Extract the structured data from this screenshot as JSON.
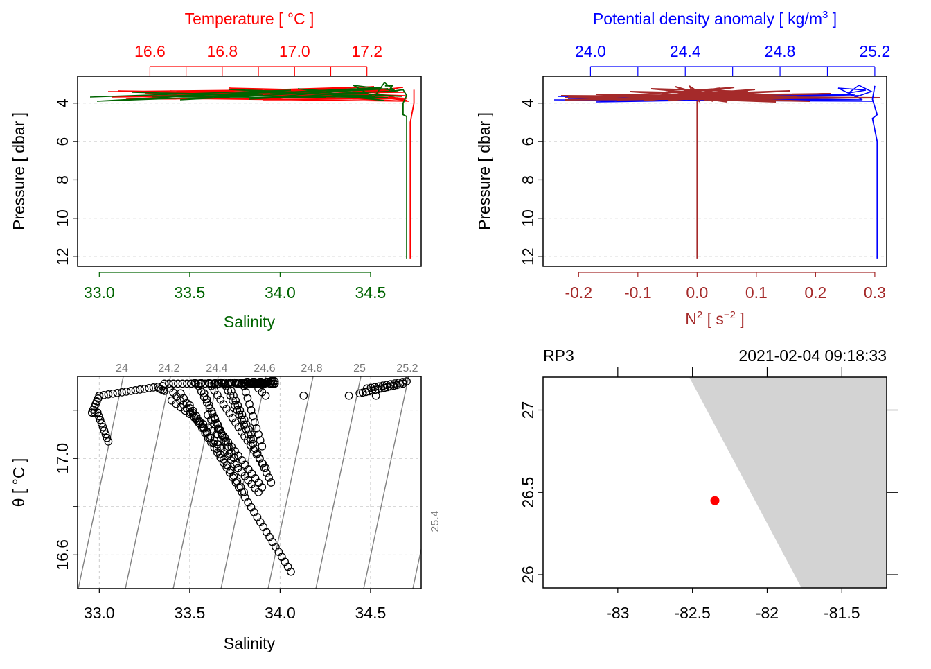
{
  "colors": {
    "salinity": "#006400",
    "temperature": "#ff0000",
    "density": "#0000ff",
    "n2": "#a52a2a",
    "land": "#d3d3d3",
    "station": "#ff0000",
    "grid": "#cccccc",
    "isopycnal": "#808080"
  },
  "chart_data": [
    {
      "type": "line",
      "name": "profile-salinity-temperature",
      "ylabel": "Pressure [ dbar ]",
      "ylim": [
        12.5,
        2.6
      ],
      "yticks": [
        "4",
        "6",
        "8",
        "10",
        "12"
      ],
      "grid": true,
      "x_bottom": {
        "label": "Salinity",
        "ticks": [
          "33.0",
          "33.5",
          "34.0",
          "34.5"
        ],
        "range": [
          32.88,
          34.78
        ]
      },
      "x_top": {
        "label": "Temperature [ °C ]",
        "ticks": [
          "16.6",
          "16.8",
          "17.0",
          "17.2"
        ],
        "range": [
          16.4,
          17.35
        ]
      },
      "series": [
        {
          "name": "Salinity",
          "axis": "bottom",
          "x": [
            34.58,
            34.62,
            34.6,
            34.68,
            34.7,
            34.68,
            34.68,
            34.7,
            34.7,
            34.7,
            34.7,
            34.7,
            34.7
          ],
          "y": [
            3.1,
            3.1,
            3.4,
            3.3,
            3.6,
            4.0,
            4.6,
            4.7,
            6.0,
            8.0,
            10.0,
            11.5,
            12.1
          ]
        },
        {
          "name": "Temperature",
          "axis": "top",
          "x": [
            17.33,
            17.33,
            17.32,
            17.32,
            17.32,
            17.32,
            17.32,
            17.32
          ],
          "y": [
            3.3,
            4.0,
            5.0,
            6.5,
            8.0,
            10.0,
            11.5,
            12.1
          ]
        }
      ]
    },
    {
      "type": "line",
      "name": "profile-density-n2",
      "ylabel": "Pressure [ dbar ]",
      "ylim": [
        12.5,
        2.6
      ],
      "yticks": [
        "4",
        "6",
        "8",
        "10",
        "12"
      ],
      "grid": true,
      "x_bottom": {
        "label": "N² [ s⁻² ]",
        "ticks": [
          "-0.2",
          "-0.1",
          "0.0",
          "0.1",
          "0.2",
          "0.3"
        ],
        "range": [
          -0.26,
          0.32
        ]
      },
      "x_top": {
        "label": "Potential density anomaly [ kg/m³ ]",
        "ticks": [
          "24.0",
          "24.4",
          "24.8",
          "25.2"
        ],
        "range": [
          23.8,
          25.25
        ]
      },
      "series": [
        {
          "name": "Potential density anomaly",
          "axis": "top",
          "x": [
            25.2,
            25.19,
            25.21,
            25.19,
            25.21,
            25.21,
            25.21,
            25.21
          ],
          "y": [
            3.1,
            3.8,
            4.6,
            4.8,
            6.0,
            8.0,
            10.0,
            12.1
          ]
        },
        {
          "name": "N2",
          "axis": "bottom",
          "x": [
            0.0,
            0.0,
            0.0,
            0.0,
            0.0
          ],
          "y": [
            3.9,
            6.0,
            8.0,
            10.0,
            12.1
          ]
        }
      ]
    },
    {
      "type": "scatter",
      "name": "ts-diagram",
      "xlabel": "Salinity",
      "ylabel": "θ [ °C ]",
      "xlim": [
        32.88,
        34.78
      ],
      "ylim": [
        16.46,
        17.34
      ],
      "xticks": [
        "33.0",
        "33.5",
        "34.0",
        "34.5"
      ],
      "yticks": [
        "16.6",
        "17.0"
      ],
      "grid": true,
      "isopycnal_labels": [
        "24",
        "24.2",
        "24.4",
        "24.6",
        "24.8",
        "25",
        "25.2",
        "25.4"
      ]
    },
    {
      "type": "map",
      "name": "station-map",
      "station": "RP3",
      "datetime": "2021-02-04 09:18:33",
      "xlim": [
        -83.5,
        -81.2
      ],
      "ylim": [
        25.92,
        27.2
      ],
      "xticks": [
        "-83",
        "-82.5",
        "-82",
        "-81.5"
      ],
      "yticks": [
        "26",
        "26.5",
        "27"
      ],
      "station_position": {
        "lon": -82.35,
        "lat": 26.45
      }
    }
  ]
}
